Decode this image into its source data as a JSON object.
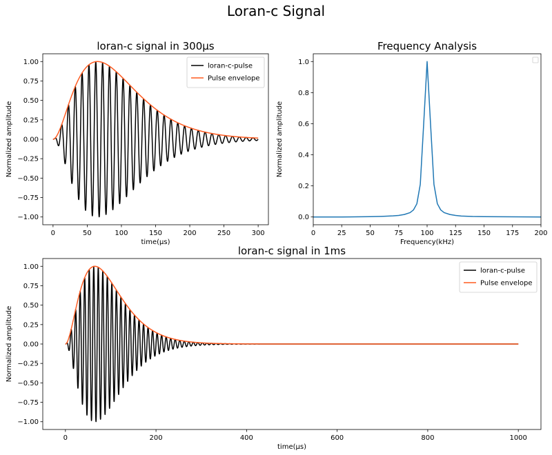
{
  "figure": {
    "suptitle": "Loran-c Signal"
  },
  "colors": {
    "pulse": "#000000",
    "envelope": "#ff5a1f",
    "spectrum": "#1f77b4"
  },
  "chart_data": [
    {
      "id": "ax1",
      "type": "line",
      "title": "loran-c signal in 300µs",
      "xlabel": "time(µs)",
      "ylabel": "Normalized amplitude",
      "xlim": [
        -15,
        315
      ],
      "ylim": [
        -1.1,
        1.1
      ],
      "xticks": [
        "0",
        "50",
        "100",
        "150",
        "200",
        "250",
        "300"
      ],
      "yticks": [
        "−1.00",
        "−0.75",
        "−0.50",
        "−0.25",
        "0.00",
        "0.25",
        "0.50",
        "0.75",
        "1.00"
      ],
      "legend": "top-right",
      "series": [
        {
          "name": "loran-c-pulse",
          "generator": "loran_pulse",
          "x_range": [
            0,
            300
          ],
          "carrier_khz": 100,
          "peak_us": 65,
          "color": "#000000"
        },
        {
          "name": "Pulse envelope",
          "generator": "loran_envelope",
          "x_range": [
            0,
            300
          ],
          "peak_us": 65,
          "color": "#ff5a1f"
        }
      ]
    },
    {
      "id": "ax2",
      "type": "line",
      "title": "Frequency Analysis",
      "xlabel": "Frequency(kHz)",
      "ylabel": "Normalized amplitude",
      "xlim": [
        0,
        200
      ],
      "ylim": [
        -0.05,
        1.05
      ],
      "xticks": [
        "0",
        "25",
        "50",
        "75",
        "100",
        "125",
        "150",
        "175",
        "200"
      ],
      "yticks": [
        "0.0",
        "0.2",
        "0.4",
        "0.6",
        "0.8",
        "1.0"
      ],
      "legend": "top-right (empty)",
      "series": [
        {
          "color": "#1f77b4",
          "x": [
            0,
            25,
            50,
            60,
            70,
            75,
            80,
            85,
            88,
            91,
            94,
            97,
            100,
            103,
            106,
            109,
            112,
            115,
            120,
            125,
            130,
            140,
            150,
            200
          ],
          "y": [
            0.0,
            0.0,
            0.002,
            0.004,
            0.007,
            0.01,
            0.016,
            0.028,
            0.045,
            0.085,
            0.21,
            0.6,
            1.0,
            0.6,
            0.21,
            0.085,
            0.045,
            0.028,
            0.016,
            0.01,
            0.006,
            0.003,
            0.002,
            0.0
          ]
        }
      ]
    },
    {
      "id": "ax3",
      "type": "line",
      "title": "loran-c signal in 1ms",
      "xlabel": "time(µs)",
      "ylabel": "Normalized amplitude",
      "xlim": [
        -50,
        1050
      ],
      "ylim": [
        -1.1,
        1.1
      ],
      "xticks": [
        "0",
        "200",
        "400",
        "600",
        "800",
        "1000"
      ],
      "yticks": [
        "−1.00",
        "−0.75",
        "−0.50",
        "−0.25",
        "0.00",
        "0.25",
        "0.50",
        "0.75",
        "1.00"
      ],
      "legend": "top-right",
      "series": [
        {
          "name": "loran-c-pulse",
          "generator": "loran_pulse",
          "x_range": [
            0,
            1000
          ],
          "carrier_khz": 100,
          "peak_us": 65,
          "color": "#000000"
        },
        {
          "name": "Pulse envelope",
          "generator": "loran_envelope",
          "x_range": [
            0,
            1000
          ],
          "peak_us": 65,
          "color": "#ff5a1f"
        }
      ]
    }
  ]
}
